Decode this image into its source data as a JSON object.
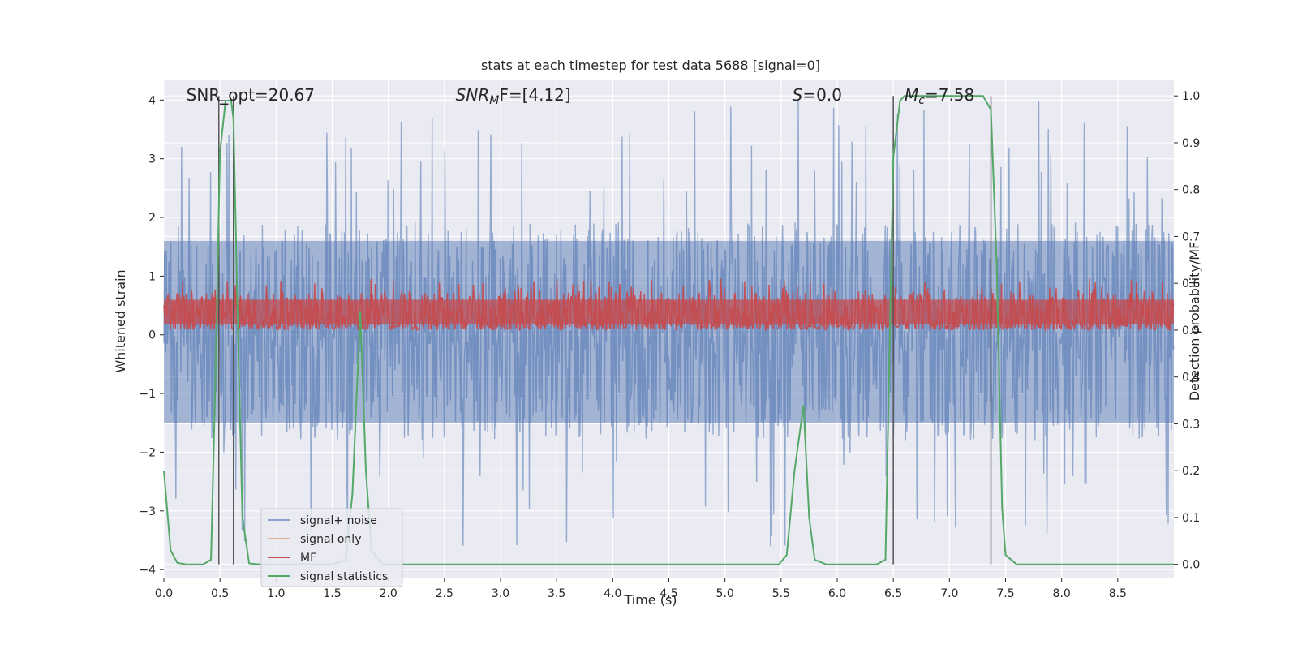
{
  "chart_data": {
    "type": "line",
    "title": "stats at each timestep for test data 5688 [signal=0]",
    "xlabel": "Time (s)",
    "ylabel_left": "Whitened strain",
    "ylabel_right": "Detection probability/MF",
    "xlim": [
      0.0,
      9.0
    ],
    "ylim_left": [
      -4.15,
      4.35
    ],
    "ylim_right": [
      -0.03,
      1.035
    ],
    "x_ticks": [
      0.0,
      0.5,
      1.0,
      1.5,
      2.0,
      2.5,
      3.0,
      3.5,
      4.0,
      4.5,
      5.0,
      5.5,
      6.0,
      6.5,
      7.0,
      7.5,
      8.0,
      8.5
    ],
    "x_tick_labels": [
      "0.0",
      "0.5",
      "1.0",
      "1.5",
      "2.0",
      "2.5",
      "3.0",
      "3.5",
      "4.0",
      "4.5",
      "5.0",
      "5.5",
      "6.0",
      "6.5",
      "7.0",
      "7.5",
      "8.0",
      "8.5"
    ],
    "y_left_ticks": [
      4,
      3,
      2,
      1,
      0,
      -1,
      -2,
      -3,
      -4
    ],
    "y_left_tick_labels": [
      "4",
      "3",
      "2",
      "1",
      "0",
      "−1",
      "−2",
      "−3",
      "−4"
    ],
    "y_right_ticks": [
      1.0,
      0.9,
      0.8,
      0.7,
      0.6,
      0.5,
      0.4,
      0.3,
      0.2,
      0.1,
      0.0
    ],
    "y_right_tick_labels": [
      "1.0",
      "0.9",
      "0.8",
      "0.7",
      "0.6",
      "0.5",
      "0.4",
      "0.3",
      "0.2",
      "0.1",
      "0.0"
    ],
    "annotations": [
      {
        "text": "SNR_opt=20.67",
        "x": 0.2
      },
      {
        "text": "SNR",
        "sub": "M",
        "rest": "F=[4.12]",
        "x": 2.6
      },
      {
        "text": "S",
        "rest": "=0.0",
        "x": 5.6
      },
      {
        "text": "M",
        "sub": "c",
        "rest": "=7.58",
        "x": 6.6
      }
    ],
    "vertical_lines": [
      0.49,
      0.62,
      6.5,
      7.37
    ],
    "series": [
      {
        "name": "signal+ noise",
        "color": "#4c72b0",
        "axis": "left",
        "band": [
          -1.5,
          1.6
        ],
        "spike_range": [
          -3.6,
          4.0
        ]
      },
      {
        "name": "signal only",
        "color": "#dd8452",
        "axis": "left",
        "values": []
      },
      {
        "name": "MF",
        "color": "#c44e52",
        "axis": "right",
        "band": [
          0.5,
          0.58
        ]
      },
      {
        "name": "signal statistics",
        "color": "#55a868",
        "axis": "right",
        "x": [
          0.0,
          0.06,
          0.12,
          0.2,
          0.35,
          0.42,
          0.46,
          0.5,
          0.55,
          0.6,
          0.62,
          0.66,
          0.7,
          0.76,
          0.85,
          1.0,
          1.2,
          1.5,
          1.62,
          1.68,
          1.75,
          1.8,
          1.85,
          1.95,
          2.1,
          2.5,
          3.0,
          4.0,
          5.0,
          5.48,
          5.55,
          5.62,
          5.7,
          5.75,
          5.8,
          5.9,
          6.0,
          6.35,
          6.43,
          6.47,
          6.5,
          6.56,
          6.6,
          6.8,
          7.0,
          7.3,
          7.37,
          7.42,
          7.47,
          7.5,
          7.6,
          8.0,
          9.0
        ],
        "y": [
          0.2,
          0.03,
          0.003,
          0.0,
          0.0,
          0.01,
          0.4,
          0.88,
          0.99,
          0.99,
          0.95,
          0.5,
          0.1,
          0.002,
          0.0,
          0.0,
          0.0,
          0.0,
          0.01,
          0.15,
          0.54,
          0.2,
          0.03,
          0.0,
          0.0,
          0.0,
          0.0,
          0.0,
          0.0,
          0.0,
          0.02,
          0.2,
          0.34,
          0.1,
          0.01,
          0.0,
          0.0,
          0.0,
          0.01,
          0.5,
          0.87,
          0.99,
          1.0,
          1.0,
          1.0,
          1.0,
          0.97,
          0.65,
          0.12,
          0.02,
          0.0,
          0.0,
          0.0
        ]
      }
    ],
    "legend": {
      "position": "lower-left",
      "entries": [
        "signal+ noise",
        "signal only",
        "MF",
        "signal statistics"
      ]
    },
    "grid": true,
    "background": "#eaeaf2"
  }
}
